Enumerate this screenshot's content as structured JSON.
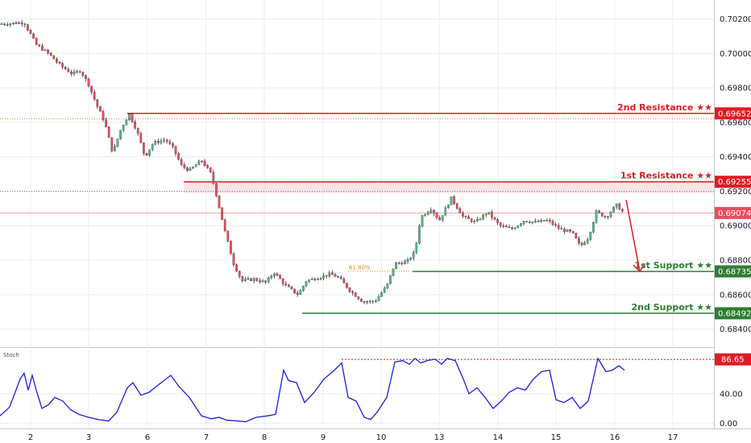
{
  "colors": {
    "bull": "#53b987",
    "bear": "#eb4d5c",
    "resistance": "#e01b24",
    "support": "#2e7d32",
    "stoch": "#1f1fd6",
    "gridline": "#e9ecf0",
    "fib": "#c8922a"
  },
  "chart_data": [
    {
      "type": "candlestick",
      "title": "",
      "x_ticks": [
        "2",
        "3",
        "6",
        "7",
        "8",
        "9",
        "10",
        "13",
        "14",
        "15",
        "16",
        "17"
      ],
      "y_ticks": [
        "0.70200",
        "0.70000",
        "0.69800",
        "0.69600",
        "0.69400",
        "0.69200",
        "0.69000",
        "0.68800",
        "0.68600",
        "0.68400"
      ],
      "ylim": [
        0.683,
        0.7031
      ],
      "levels": [
        {
          "label": "2nd Resistance ★★",
          "value": 0.69652,
          "tag": "0.69652",
          "kind": "resistance"
        },
        {
          "label": "1st Resistance ★★",
          "value": 0.69255,
          "tag": "0.69255",
          "kind": "resistance"
        },
        {
          "label": "1st Support ★★",
          "value": 0.68735,
          "tag": "0.68735",
          "kind": "support"
        },
        {
          "label": "2nd Support ★★",
          "value": 0.68492,
          "tag": "0.68492",
          "kind": "support"
        }
      ],
      "current_price": {
        "value": 0.69074,
        "tag": "0.69074"
      },
      "fib_annotation": {
        "label": "61.80%",
        "value": 0.68736
      },
      "price_path": [
        [
          0,
          0.7017
        ],
        [
          30,
          0.7018
        ],
        [
          45,
          0.7005
        ],
        [
          60,
          0.7
        ],
        [
          75,
          0.6993
        ],
        [
          90,
          0.6988
        ],
        [
          100,
          0.699
        ],
        [
          110,
          0.6982
        ],
        [
          120,
          0.697
        ],
        [
          130,
          0.696
        ],
        [
          140,
          0.6942
        ],
        [
          150,
          0.6956
        ],
        [
          160,
          0.6965
        ],
        [
          170,
          0.6955
        ],
        [
          180,
          0.694
        ],
        [
          190,
          0.6948
        ],
        [
          205,
          0.695
        ],
        [
          215,
          0.6945
        ],
        [
          225,
          0.6935
        ],
        [
          235,
          0.6932
        ],
        [
          250,
          0.6938
        ],
        [
          262,
          0.693
        ],
        [
          270,
          0.6915
        ],
        [
          280,
          0.6895
        ],
        [
          290,
          0.6878
        ],
        [
          300,
          0.6868
        ],
        [
          315,
          0.6869
        ],
        [
          330,
          0.6867
        ],
        [
          340,
          0.6873
        ],
        [
          355,
          0.6865
        ],
        [
          370,
          0.686
        ],
        [
          380,
          0.6868
        ],
        [
          395,
          0.687
        ],
        [
          410,
          0.6872
        ],
        [
          420,
          0.687
        ],
        [
          435,
          0.6862
        ],
        [
          450,
          0.6856
        ],
        [
          465,
          0.6856
        ],
        [
          480,
          0.6865
        ],
        [
          490,
          0.6878
        ],
        [
          505,
          0.6879
        ],
        [
          515,
          0.6885
        ],
        [
          522,
          0.6905
        ],
        [
          535,
          0.691
        ],
        [
          545,
          0.6903
        ],
        [
          560,
          0.6916
        ],
        [
          575,
          0.6905
        ],
        [
          590,
          0.6902
        ],
        [
          605,
          0.6908
        ],
        [
          620,
          0.69
        ],
        [
          635,
          0.6898
        ],
        [
          650,
          0.6903
        ],
        [
          665,
          0.6902
        ],
        [
          680,
          0.6903
        ],
        [
          695,
          0.6898
        ],
        [
          710,
          0.6896
        ],
        [
          720,
          0.6888
        ],
        [
          730,
          0.6893
        ],
        [
          740,
          0.6908
        ],
        [
          752,
          0.6905
        ],
        [
          765,
          0.6912
        ],
        [
          775,
          0.6907
        ]
      ]
    },
    {
      "type": "line",
      "title": "Stoch",
      "y_ticks": [
        "40.00",
        "0.00"
      ],
      "ylim": [
        -5,
        100
      ],
      "threshold": {
        "value": 86.65,
        "tag": "86.65"
      },
      "series": [
        {
          "values": [
            [
              0,
              10
            ],
            [
              12,
              22
            ],
            [
              25,
              60
            ],
            [
              30,
              68
            ],
            [
              35,
              45
            ],
            [
              40,
              65
            ],
            [
              45,
              45
            ],
            [
              52,
              20
            ],
            [
              60,
              25
            ],
            [
              68,
              35
            ],
            [
              78,
              30
            ],
            [
              88,
              18
            ],
            [
              98,
              12
            ],
            [
              110,
              8
            ],
            [
              122,
              5
            ],
            [
              135,
              3
            ],
            [
              145,
              15
            ],
            [
              158,
              48
            ],
            [
              165,
              55
            ],
            [
              175,
              38
            ],
            [
              185,
              42
            ],
            [
              200,
              55
            ],
            [
              212,
              65
            ],
            [
              222,
              50
            ],
            [
              235,
              35
            ],
            [
              250,
              10
            ],
            [
              262,
              6
            ],
            [
              272,
              8
            ],
            [
              282,
              4
            ],
            [
              295,
              3
            ],
            [
              305,
              2
            ],
            [
              318,
              8
            ],
            [
              332,
              10
            ],
            [
              342,
              12
            ],
            [
              352,
              72
            ],
            [
              358,
              58
            ],
            [
              368,
              55
            ],
            [
              378,
              28
            ],
            [
              390,
              42
            ],
            [
              402,
              60
            ],
            [
              415,
              72
            ],
            [
              424,
              82
            ],
            [
              432,
              35
            ],
            [
              442,
              30
            ],
            [
              452,
              8
            ],
            [
              460,
              5
            ],
            [
              468,
              15
            ],
            [
              480,
              35
            ],
            [
              490,
              83
            ],
            [
              500,
              85
            ],
            [
              508,
              80
            ],
            [
              515,
              88
            ],
            [
              522,
              82
            ],
            [
              530,
              85
            ],
            [
              540,
              87
            ],
            [
              548,
              80
            ],
            [
              555,
              88
            ],
            [
              565,
              85
            ],
            [
              575,
              60
            ],
            [
              582,
              40
            ],
            [
              592,
              48
            ],
            [
              602,
              35
            ],
            [
              612,
              20
            ],
            [
              622,
              30
            ],
            [
              632,
              42
            ],
            [
              642,
              48
            ],
            [
              652,
              45
            ],
            [
              662,
              60
            ],
            [
              672,
              70
            ],
            [
              682,
              72
            ],
            [
              690,
              32
            ],
            [
              700,
              28
            ],
            [
              710,
              35
            ],
            [
              720,
              20
            ],
            [
              730,
              30
            ],
            [
              742,
              88
            ],
            [
              752,
              70
            ],
            [
              760,
              72
            ],
            [
              768,
              78
            ],
            [
              775,
              72
            ]
          ]
        }
      ]
    }
  ]
}
